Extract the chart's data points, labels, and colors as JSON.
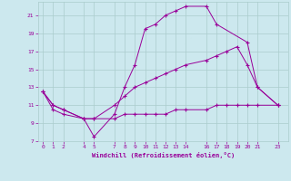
{
  "xlabel": "Windchill (Refroidissement éolien,°C)",
  "background_color": "#cce8ee",
  "grid_color": "#aacccc",
  "line_color": "#990099",
  "xlim": [
    -0.5,
    24
  ],
  "ylim": [
    7,
    22.5
  ],
  "xticks": [
    0,
    1,
    2,
    4,
    5,
    7,
    8,
    9,
    10,
    11,
    12,
    13,
    14,
    16,
    17,
    18,
    19,
    20,
    21,
    23
  ],
  "yticks": [
    7,
    9,
    11,
    13,
    15,
    17,
    19,
    21
  ],
  "series": [
    {
      "x": [
        0,
        1,
        2,
        4,
        5,
        7,
        8,
        9,
        10,
        11,
        12,
        13,
        14,
        16,
        17,
        20,
        21,
        23
      ],
      "y": [
        12.5,
        11.0,
        10.5,
        9.5,
        7.5,
        10.0,
        13.0,
        15.5,
        19.5,
        20.0,
        21.0,
        21.5,
        22.0,
        22.0,
        20.0,
        18.0,
        13.0,
        11.0
      ]
    },
    {
      "x": [
        0,
        1,
        2,
        4,
        5,
        7,
        8,
        9,
        10,
        11,
        12,
        13,
        14,
        16,
        17,
        18,
        19,
        20,
        21,
        23
      ],
      "y": [
        12.5,
        10.5,
        10.0,
        9.5,
        9.5,
        9.5,
        10.0,
        10.0,
        10.0,
        10.0,
        10.0,
        10.5,
        10.5,
        10.5,
        11.0,
        11.0,
        11.0,
        11.0,
        11.0,
        11.0
      ]
    },
    {
      "x": [
        0,
        1,
        2,
        4,
        5,
        7,
        8,
        9,
        10,
        11,
        12,
        13,
        14,
        16,
        17,
        18,
        19,
        20,
        21,
        23
      ],
      "y": [
        12.5,
        11.0,
        10.5,
        9.5,
        9.5,
        11.0,
        12.0,
        13.0,
        13.5,
        14.0,
        14.5,
        15.0,
        15.5,
        16.0,
        16.5,
        17.0,
        17.5,
        15.5,
        13.0,
        11.0
      ]
    }
  ]
}
